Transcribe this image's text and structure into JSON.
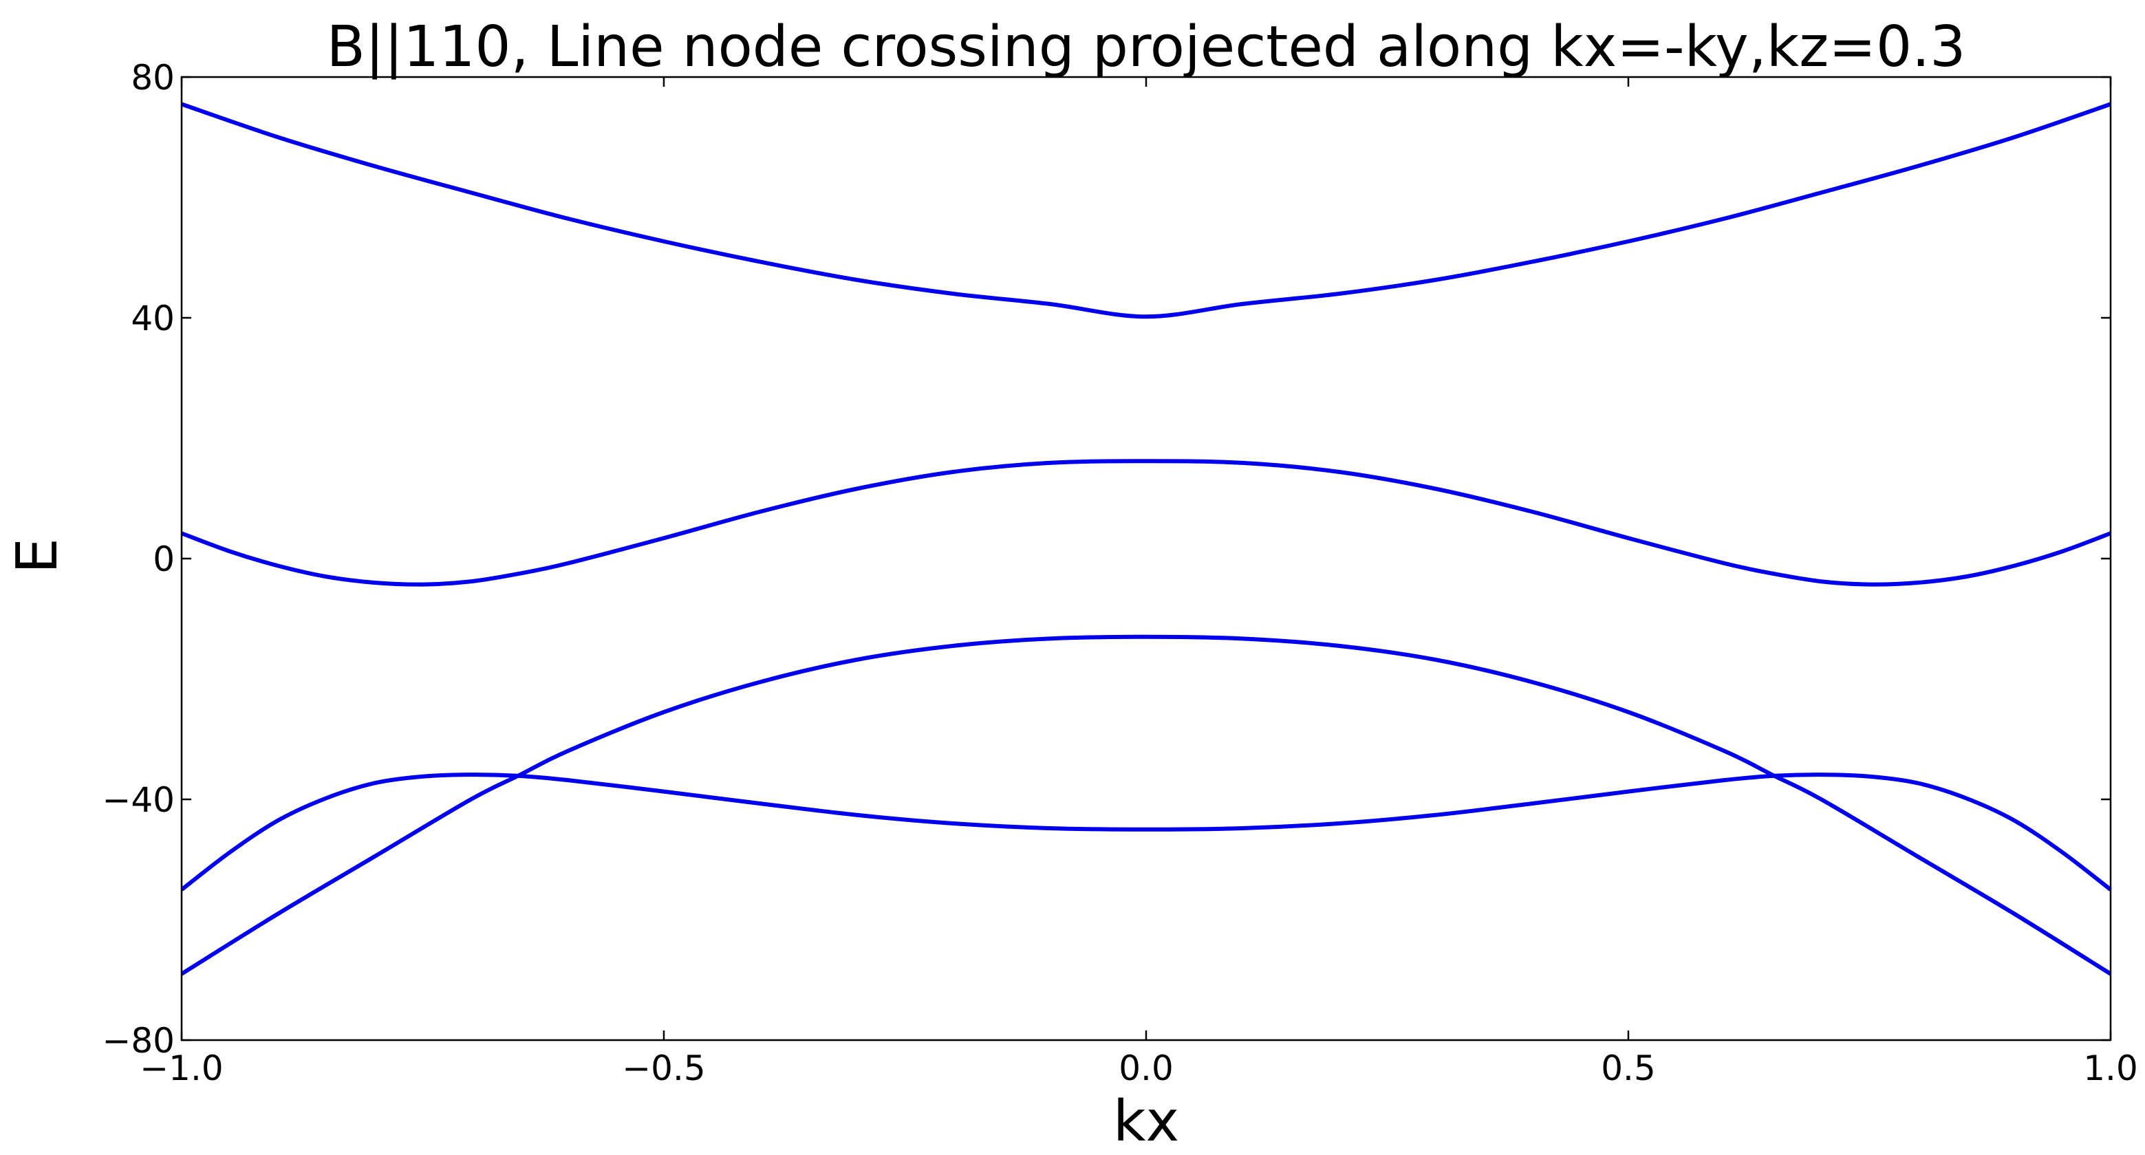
{
  "chart_data": {
    "type": "line",
    "title": "B||110, Line node crossing projected along kx=-ky,kz=0.3",
    "xlabel": "kx",
    "ylabel": "E",
    "xlim": [
      -1.0,
      1.0
    ],
    "ylim": [
      -80,
      80
    ],
    "x_ticks": [
      -1.0,
      -0.5,
      0.0,
      0.5,
      1.0
    ],
    "x_tick_labels": [
      "−1.0",
      "−0.5",
      "0.0",
      "0.5",
      "1.0"
    ],
    "y_ticks": [
      -80,
      -40,
      0,
      40,
      80
    ],
    "y_tick_labels": [
      "−80",
      "−40",
      "0",
      "40",
      "80"
    ],
    "grid": false,
    "line_color": "#0000ee",
    "series": [
      {
        "x": [
          -1.0,
          -0.9,
          -0.8,
          -0.7,
          -0.6,
          -0.5,
          -0.4,
          -0.3,
          -0.2,
          -0.1,
          0.0,
          0.1,
          0.2,
          0.3,
          0.4,
          0.5,
          0.6,
          0.7,
          0.8,
          0.9,
          1.0
        ],
        "values": [
          75.5,
          70.0,
          65.2,
          60.8,
          56.5,
          52.7,
          49.3,
          46.3,
          44.0,
          42.3,
          40.2,
          42.3,
          44.0,
          46.3,
          49.3,
          52.7,
          56.5,
          60.8,
          65.2,
          70.0,
          75.5
        ]
      },
      {
        "x": [
          -1.0,
          -0.95,
          -0.9,
          -0.85,
          -0.8,
          -0.75,
          -0.7,
          -0.65,
          -0.6,
          -0.5,
          -0.4,
          -0.3,
          -0.2,
          -0.1,
          0.0,
          0.1,
          0.2,
          0.3,
          0.4,
          0.5,
          0.6,
          0.65,
          0.7,
          0.75,
          0.8,
          0.85,
          0.9,
          0.95,
          1.0
        ],
        "values": [
          4.2,
          1.2,
          -1.2,
          -3.0,
          -4.0,
          -4.3,
          -3.8,
          -2.5,
          -0.8,
          3.4,
          7.8,
          11.6,
          14.4,
          15.9,
          16.2,
          15.9,
          14.4,
          11.6,
          7.8,
          3.4,
          -0.8,
          -2.5,
          -3.8,
          -4.3,
          -4.0,
          -3.0,
          -1.2,
          1.2,
          4.2
        ]
      },
      {
        "x": [
          -1.0,
          -0.9,
          -0.8,
          -0.7,
          -0.65,
          -0.6,
          -0.5,
          -0.4,
          -0.3,
          -0.2,
          -0.1,
          0.0,
          0.1,
          0.2,
          0.3,
          0.4,
          0.5,
          0.6,
          0.65,
          0.7,
          0.8,
          0.9,
          1.0
        ],
        "values": [
          -69,
          -59,
          -49.5,
          -40,
          -36,
          -32,
          -25.5,
          -20.5,
          -16.8,
          -14.5,
          -13.3,
          -13.0,
          -13.3,
          -14.5,
          -16.8,
          -20.5,
          -25.5,
          -32,
          -36,
          -40,
          -49.5,
          -59,
          -69
        ]
      },
      {
        "x": [
          -1.0,
          -0.95,
          -0.9,
          -0.85,
          -0.8,
          -0.75,
          -0.7,
          -0.65,
          -0.6,
          -0.5,
          -0.4,
          -0.3,
          -0.2,
          -0.1,
          0.0,
          0.1,
          0.2,
          0.3,
          0.4,
          0.5,
          0.6,
          0.65,
          0.7,
          0.75,
          0.8,
          0.85,
          0.9,
          0.95,
          1.0
        ],
        "values": [
          -55,
          -48.8,
          -43.5,
          -39.8,
          -37.3,
          -36.2,
          -35.9,
          -36.1,
          -36.8,
          -38.7,
          -40.7,
          -42.6,
          -44.0,
          -44.8,
          -45.0,
          -44.8,
          -44.0,
          -42.6,
          -40.7,
          -38.7,
          -36.8,
          -36.1,
          -35.9,
          -36.2,
          -37.3,
          -39.8,
          -43.5,
          -48.8,
          -55
        ]
      }
    ]
  }
}
